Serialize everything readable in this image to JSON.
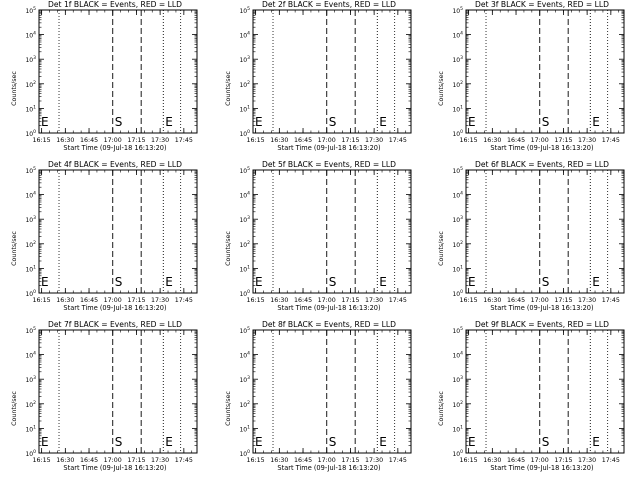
{
  "chart_data": [
    {
      "type": "line",
      "title": "Det 1f BLACK = Events, RED = LLD",
      "xlabel": "Start Time (09-Jul-18 16:13:20)",
      "ylabel": "Counts/sec",
      "x_ticks": [
        "16:15",
        "16:30",
        "16:45",
        "17:00",
        "17:15",
        "17:30",
        "17:45"
      ],
      "y_ticks": [
        "10^0",
        "10^1",
        "10^2",
        "10^3",
        "10^4",
        "10^5"
      ],
      "xlim": [
        "16:13:20",
        "17:53:20"
      ],
      "ylim": [
        1,
        100000
      ],
      "y_scale": "log",
      "markers": [
        {
          "label": "E",
          "time": "16:13:20",
          "style": "dotted"
        },
        {
          "label": "S",
          "time": "17:00:00",
          "style": "dashed"
        },
        {
          "label": "",
          "time": "17:18:00",
          "style": "dashed"
        },
        {
          "label": "E",
          "time": "17:32:00",
          "style": "dotted"
        }
      ],
      "extra_dotted_lines": [
        "16:26:00",
        "17:43:00"
      ],
      "series": []
    },
    {
      "type": "line",
      "title": "Det 2f BLACK = Events, RED = LLD",
      "xlabel": "Start Time (09-Jul-18 16:13:20)",
      "ylabel": "Counts/sec",
      "x_ticks": [
        "16:15",
        "16:30",
        "16:45",
        "17:00",
        "17:15",
        "17:30",
        "17:45"
      ],
      "y_ticks": [
        "10^0",
        "10^1",
        "10^2",
        "10^3",
        "10^4",
        "10^5"
      ],
      "xlim": [
        "16:13:20",
        "17:53:20"
      ],
      "ylim": [
        1,
        100000
      ],
      "y_scale": "log",
      "markers": [
        {
          "label": "E",
          "time": "16:13:20",
          "style": "dotted"
        },
        {
          "label": "S",
          "time": "17:00:00",
          "style": "dashed"
        },
        {
          "label": "",
          "time": "17:18:00",
          "style": "dashed"
        },
        {
          "label": "E",
          "time": "17:32:00",
          "style": "dotted"
        }
      ],
      "extra_dotted_lines": [
        "16:26:00",
        "17:43:00"
      ],
      "series": []
    },
    {
      "type": "line",
      "title": "Det 3f BLACK = Events, RED = LLD",
      "xlabel": "Start Time (09-Jul-18 16:13:20)",
      "ylabel": "Counts/sec",
      "x_ticks": [
        "16:15",
        "16:30",
        "16:45",
        "17:00",
        "17:15",
        "17:30",
        "17:45"
      ],
      "y_ticks": [
        "10^0",
        "10^1",
        "10^2",
        "10^3",
        "10^4",
        "10^5"
      ],
      "xlim": [
        "16:13:20",
        "17:53:20"
      ],
      "ylim": [
        1,
        100000
      ],
      "y_scale": "log",
      "markers": [
        {
          "label": "E",
          "time": "16:13:20",
          "style": "dotted"
        },
        {
          "label": "S",
          "time": "17:00:00",
          "style": "dashed"
        },
        {
          "label": "",
          "time": "17:18:00",
          "style": "dashed"
        },
        {
          "label": "E",
          "time": "17:32:00",
          "style": "dotted"
        }
      ],
      "extra_dotted_lines": [
        "16:26:00",
        "17:43:00"
      ],
      "series": []
    },
    {
      "type": "line",
      "title": "Det 4f BLACK = Events, RED = LLD",
      "xlabel": "Start Time (09-Jul-18 16:13:20)",
      "ylabel": "Counts/sec",
      "x_ticks": [
        "16:15",
        "16:30",
        "16:45",
        "17:00",
        "17:15",
        "17:30",
        "17:45"
      ],
      "y_ticks": [
        "10^0",
        "10^1",
        "10^2",
        "10^3",
        "10^4",
        "10^5"
      ],
      "xlim": [
        "16:13:20",
        "17:53:20"
      ],
      "ylim": [
        1,
        100000
      ],
      "y_scale": "log",
      "markers": [
        {
          "label": "E",
          "time": "16:13:20",
          "style": "dotted"
        },
        {
          "label": "S",
          "time": "17:00:00",
          "style": "dashed"
        },
        {
          "label": "",
          "time": "17:18:00",
          "style": "dashed"
        },
        {
          "label": "E",
          "time": "17:32:00",
          "style": "dotted"
        }
      ],
      "extra_dotted_lines": [
        "16:26:00",
        "17:43:00"
      ],
      "series": []
    },
    {
      "type": "line",
      "title": "Det 5f BLACK = Events, RED = LLD",
      "xlabel": "Start Time (09-Jul-18 16:13:20)",
      "ylabel": "Counts/sec",
      "x_ticks": [
        "16:15",
        "16:30",
        "16:45",
        "17:00",
        "17:15",
        "17:30",
        "17:45"
      ],
      "y_ticks": [
        "10^0",
        "10^1",
        "10^2",
        "10^3",
        "10^4",
        "10^5"
      ],
      "xlim": [
        "16:13:20",
        "17:53:20"
      ],
      "ylim": [
        1,
        100000
      ],
      "y_scale": "log",
      "markers": [
        {
          "label": "E",
          "time": "16:13:20",
          "style": "dotted"
        },
        {
          "label": "S",
          "time": "17:00:00",
          "style": "dashed"
        },
        {
          "label": "",
          "time": "17:18:00",
          "style": "dashed"
        },
        {
          "label": "E",
          "time": "17:32:00",
          "style": "dotted"
        }
      ],
      "extra_dotted_lines": [
        "16:26:00",
        "17:43:00"
      ],
      "series": []
    },
    {
      "type": "line",
      "title": "Det 6f BLACK = Events, RED = LLD",
      "xlabel": "Start Time (09-Jul-18 16:13:20)",
      "ylabel": "Counts/sec",
      "x_ticks": [
        "16:15",
        "16:30",
        "16:45",
        "17:00",
        "17:15",
        "17:30",
        "17:45"
      ],
      "y_ticks": [
        "10^0",
        "10^1",
        "10^2",
        "10^3",
        "10^4",
        "10^5"
      ],
      "xlim": [
        "16:13:20",
        "17:53:20"
      ],
      "ylim": [
        1,
        100000
      ],
      "y_scale": "log",
      "markers": [
        {
          "label": "E",
          "time": "16:13:20",
          "style": "dotted"
        },
        {
          "label": "S",
          "time": "17:00:00",
          "style": "dashed"
        },
        {
          "label": "",
          "time": "17:18:00",
          "style": "dashed"
        },
        {
          "label": "E",
          "time": "17:32:00",
          "style": "dotted"
        }
      ],
      "extra_dotted_lines": [
        "16:26:00",
        "17:43:00"
      ],
      "series": []
    },
    {
      "type": "line",
      "title": "Det 7f BLACK = Events, RED = LLD",
      "xlabel": "Start Time (09-Jul-18 16:13:20)",
      "ylabel": "Counts/sec",
      "x_ticks": [
        "16:15",
        "16:30",
        "16:45",
        "17:00",
        "17:15",
        "17:30",
        "17:45"
      ],
      "y_ticks": [
        "10^0",
        "10^1",
        "10^2",
        "10^3",
        "10^4",
        "10^5"
      ],
      "xlim": [
        "16:13:20",
        "17:53:20"
      ],
      "ylim": [
        1,
        100000
      ],
      "y_scale": "log",
      "markers": [
        {
          "label": "E",
          "time": "16:13:20",
          "style": "dotted"
        },
        {
          "label": "S",
          "time": "17:00:00",
          "style": "dashed"
        },
        {
          "label": "",
          "time": "17:18:00",
          "style": "dashed"
        },
        {
          "label": "E",
          "time": "17:32:00",
          "style": "dotted"
        }
      ],
      "extra_dotted_lines": [
        "16:26:00",
        "17:43:00"
      ],
      "series": []
    },
    {
      "type": "line",
      "title": "Det 8f BLACK = Events, RED = LLD",
      "xlabel": "Start Time (09-Jul-18 16:13:20)",
      "ylabel": "Counts/sec",
      "x_ticks": [
        "16:15",
        "16:30",
        "16:45",
        "17:00",
        "17:15",
        "17:30",
        "17:45"
      ],
      "y_ticks": [
        "10^0",
        "10^1",
        "10^2",
        "10^3",
        "10^4",
        "10^5"
      ],
      "xlim": [
        "16:13:20",
        "17:53:20"
      ],
      "ylim": [
        1,
        100000
      ],
      "y_scale": "log",
      "markers": [
        {
          "label": "E",
          "time": "16:13:20",
          "style": "dotted"
        },
        {
          "label": "S",
          "time": "17:00:00",
          "style": "dashed"
        },
        {
          "label": "",
          "time": "17:18:00",
          "style": "dashed"
        },
        {
          "label": "E",
          "time": "17:32:00",
          "style": "dotted"
        }
      ],
      "extra_dotted_lines": [
        "16:26:00",
        "17:43:00"
      ],
      "series": []
    },
    {
      "type": "line",
      "title": "Det 9f BLACK = Events, RED = LLD",
      "xlabel": "Start Time (09-Jul-18 16:13:20)",
      "ylabel": "Counts/sec",
      "x_ticks": [
        "16:15",
        "16:30",
        "16:45",
        "17:00",
        "17:15",
        "17:30",
        "17:45"
      ],
      "y_ticks": [
        "10^0",
        "10^1",
        "10^2",
        "10^3",
        "10^4",
        "10^5"
      ],
      "xlim": [
        "16:13:20",
        "17:53:20"
      ],
      "ylim": [
        1,
        100000
      ],
      "y_scale": "log",
      "markers": [
        {
          "label": "E",
          "time": "16:13:20",
          "style": "dotted"
        },
        {
          "label": "S",
          "time": "17:00:00",
          "style": "dashed"
        },
        {
          "label": "",
          "time": "17:18:00",
          "style": "dashed"
        },
        {
          "label": "E",
          "time": "17:32:00",
          "style": "dotted"
        }
      ],
      "extra_dotted_lines": [
        "16:26:00",
        "17:43:00"
      ],
      "series": []
    }
  ]
}
